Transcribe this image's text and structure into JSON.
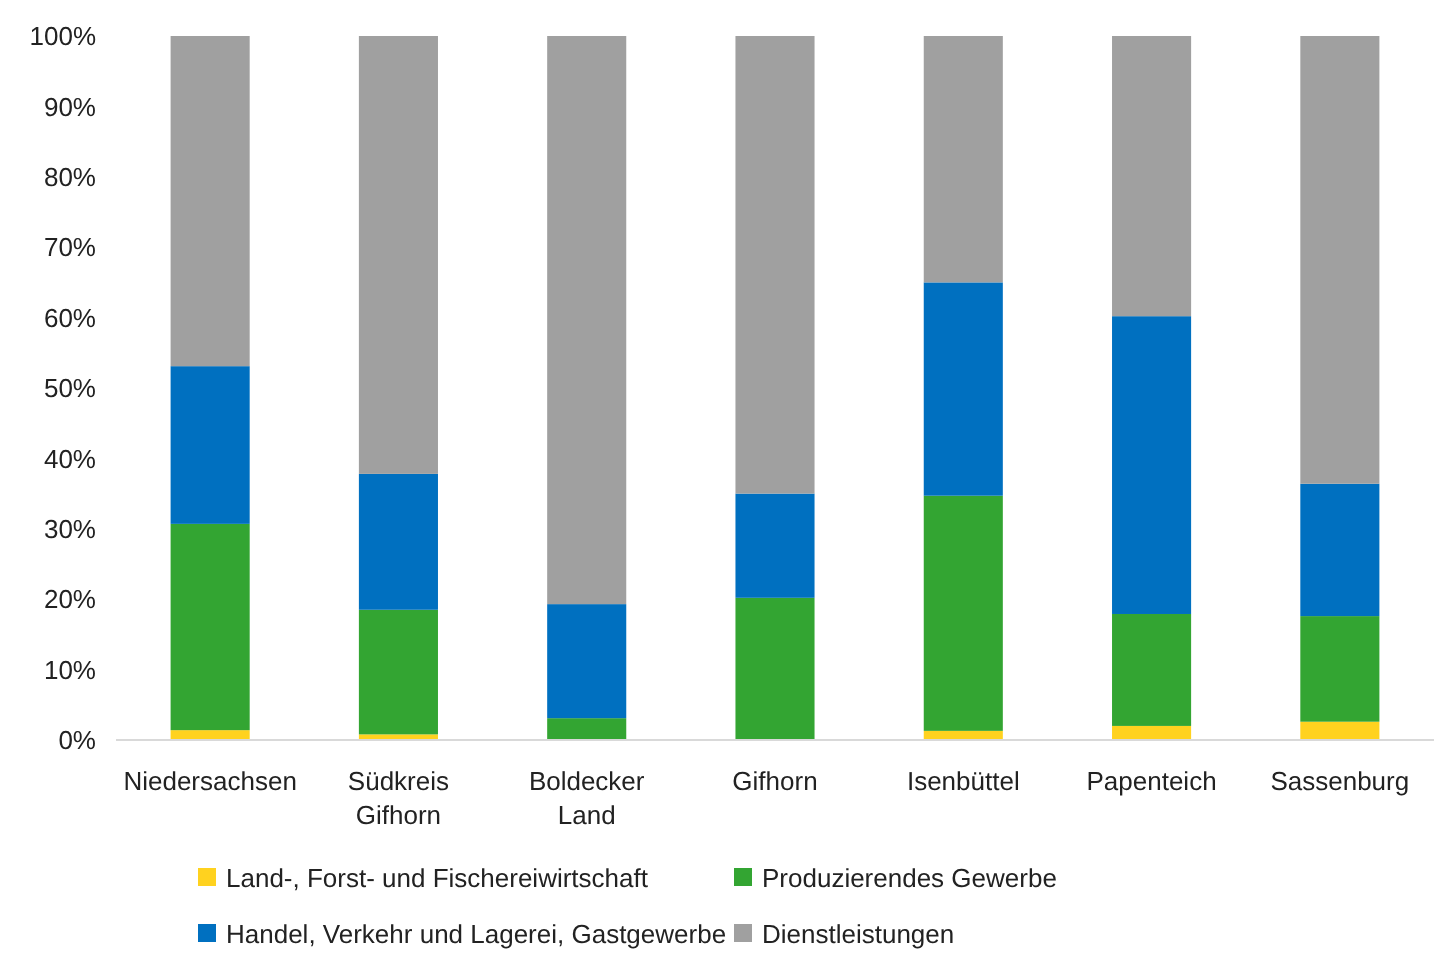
{
  "chart_data": {
    "type": "bar",
    "stacked": true,
    "categories": [
      "Niedersachsen",
      "Südkreis Gifhorn",
      "Boldecker Land",
      "Gifhorn",
      "Isenbüttel",
      "Papenteich",
      "Sassenburg"
    ],
    "series": [
      {
        "name": "Land-, Forst- und Fischereiwirtschaft",
        "color": "#ffd21f",
        "values": [
          1.4,
          0.8,
          null,
          null,
          1.3,
          2.0,
          2.6
        ]
      },
      {
        "name": "Produzierendes Gewerbe",
        "color": "#33a532",
        "values": [
          29.3,
          17.7,
          3.1,
          20.2,
          33.4,
          15.9,
          15.0
        ]
      },
      {
        "name": "Handel, Verkehr und Lagerei, Gastgewerbe",
        "color": "#0070c0",
        "values": [
          22.4,
          19.3,
          16.2,
          14.8,
          30.3,
          42.3,
          18.8
        ]
      },
      {
        "name": "Dienstleistungen",
        "color": "#a0a0a0",
        "values": [
          46.9,
          62.2,
          80.7,
          65.0,
          35.0,
          39.8,
          63.6
        ]
      }
    ],
    "ylim": [
      0,
      100
    ],
    "yticks": [
      {
        "value": 0,
        "label": "0%"
      },
      {
        "value": 10,
        "label": "10%"
      },
      {
        "value": 20,
        "label": "20%"
      },
      {
        "value": 30,
        "label": "30%"
      },
      {
        "value": 40,
        "label": "40%"
      },
      {
        "value": 50,
        "label": "50%"
      },
      {
        "value": 60,
        "label": "60%"
      },
      {
        "value": 70,
        "label": "70%"
      },
      {
        "value": 80,
        "label": "80%"
      },
      {
        "value": 90,
        "label": "90%"
      },
      {
        "value": 100,
        "label": "100%"
      }
    ],
    "legend": "bottom"
  }
}
